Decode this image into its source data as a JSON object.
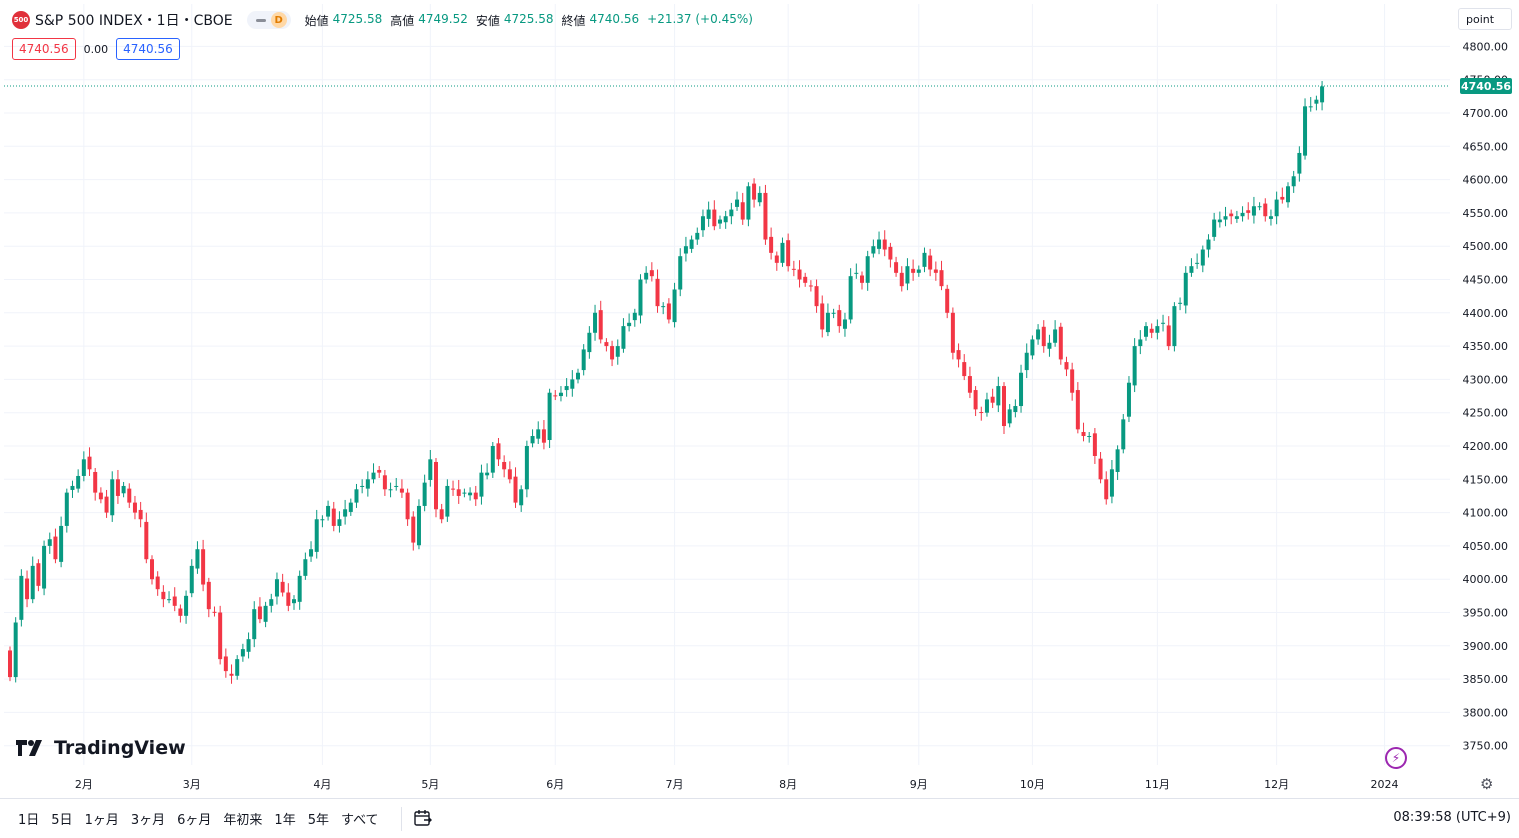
{
  "header": {
    "symbol_badge": "500",
    "symbol_name": "S&P 500 INDEX・1日・CBOE",
    "status_letter": "D",
    "ohlc": [
      {
        "key": "始値",
        "value": "4725.58"
      },
      {
        "key": "高値",
        "value": "4749.52"
      },
      {
        "key": "安値",
        "value": "4725.58"
      },
      {
        "key": "終値",
        "value": "4740.56"
      },
      {
        "key": "",
        "value": "+21.37 (+0.45%)"
      }
    ],
    "sell_price": "4740.56",
    "spread": "0.00",
    "buy_price": "4740.56",
    "unit_label": "point"
  },
  "logo_text": "TradingView",
  "toolbar": {
    "ranges": [
      "1日",
      "5日",
      "1ヶ月",
      "3ヶ月",
      "6ヶ月",
      "年初来",
      "1年",
      "5年",
      "すべて"
    ],
    "clock": "08:39:58 (UTC+9)"
  },
  "colors": {
    "up": "#089981",
    "down": "#f23645",
    "grid": "#f0f3fa",
    "last_price_bg": "#089981"
  },
  "chart_data": {
    "type": "candlestick",
    "y_ticks": [
      3750,
      3800,
      3850,
      3900,
      3950,
      4000,
      4050,
      4100,
      4150,
      4200,
      4250,
      4300,
      4350,
      4400,
      4450,
      4500,
      4550,
      4600,
      4650,
      4700,
      4750,
      4800
    ],
    "y_tick_labels": [
      "3750.00",
      "3800.00",
      "3850.00",
      "3900.00",
      "3950.00",
      "4000.00",
      "4050.00",
      "4100.00",
      "4150.00",
      "4200.00",
      "4250.00",
      "4300.00",
      "4350.00",
      "4400.00",
      "4450.00",
      "4500.00",
      "4550.00",
      "4600.00",
      "4650.00",
      "4700.00",
      "4750.00",
      "4800.00"
    ],
    "ylim": [
      3720,
      4810
    ],
    "x_labels": [
      {
        "label": "2月",
        "index": 13
      },
      {
        "label": "3月",
        "index": 32
      },
      {
        "label": "4月",
        "index": 55
      },
      {
        "label": "5月",
        "index": 74
      },
      {
        "label": "6月",
        "index": 96
      },
      {
        "label": "7月",
        "index": 117
      },
      {
        "label": "8月",
        "index": 137
      },
      {
        "label": "9月",
        "index": 160
      },
      {
        "label": "10月",
        "index": 180
      },
      {
        "label": "11月",
        "index": 202
      },
      {
        "label": "12月",
        "index": 223
      },
      {
        "label": "2024",
        "index": 242
      }
    ],
    "last_price": 4740.56,
    "last_price_label": "4740.56",
    "close": [
      3853,
      3935,
      4005,
      3970,
      4020,
      3990,
      4050,
      4060,
      4030,
      4080,
      4130,
      4140,
      4155,
      4180,
      4165,
      4130,
      4120,
      4100,
      4150,
      4125,
      4140,
      4115,
      4100,
      4090,
      4030,
      4000,
      3985,
      3970,
      3970,
      3960,
      3945,
      3975,
      4020,
      4045,
      3992,
      3955,
      3950,
      3880,
      3862,
      3855,
      3880,
      3895,
      3910,
      3955,
      3940,
      3960,
      3970,
      4000,
      3980,
      3960,
      3970,
      4005,
      4030,
      4045,
      4090,
      4090,
      4110,
      4080,
      4090,
      4105,
      4115,
      4135,
      4140,
      4150,
      4160,
      4160,
      4135,
      4135,
      4140,
      4130,
      4090,
      4055,
      4110,
      4145,
      4180,
      4105,
      4090,
      4140,
      4135,
      4125,
      4130,
      4130,
      4120,
      4160,
      4160,
      4200,
      4180,
      4165,
      4150,
      4115,
      4135,
      4200,
      4215,
      4225,
      4205,
      4280,
      4275,
      4280,
      4290,
      4300,
      4310,
      4345,
      4370,
      4400,
      4360,
      4350,
      4330,
      4350,
      4380,
      4385,
      4400,
      4450,
      4460,
      4455,
      4410,
      4410,
      4390,
      4435,
      4485,
      4500,
      4510,
      4520,
      4545,
      4555,
      4530,
      4540,
      4545,
      4555,
      4570,
      4540,
      4590,
      4570,
      4580,
      4510,
      4490,
      4475,
      4505,
      4470,
      4465,
      4450,
      4445,
      4440,
      4410,
      4375,
      4400,
      4400,
      4380,
      4390,
      4455,
      4460,
      4445,
      4485,
      4500,
      4510,
      4495,
      4480,
      4460,
      4440,
      4470,
      4460,
      4465,
      4490,
      4465,
      4460,
      4440,
      4400,
      4340,
      4330,
      4305,
      4280,
      4255,
      4250,
      4270,
      4265,
      4290,
      4230,
      4255,
      4260,
      4310,
      4340,
      4360,
      4375,
      4350,
      4355,
      4375,
      4330,
      4315,
      4280,
      4225,
      4215,
      4215,
      4185,
      4150,
      4120,
      4165,
      4195,
      4240,
      4295,
      4350,
      4360,
      4380,
      4370,
      4380,
      4385,
      4350,
      4410,
      4415,
      4460,
      4470,
      4475,
      4495,
      4510,
      4540,
      4540,
      4545,
      4545,
      4545,
      4550,
      4550,
      4560,
      4560,
      4545,
      4545,
      4570,
      4570,
      4590,
      4605,
      4640,
      4710,
      4710,
      4720,
      4740
    ],
    "series": [
      {
        "name": "S&P 500 INDEX"
      }
    ]
  }
}
